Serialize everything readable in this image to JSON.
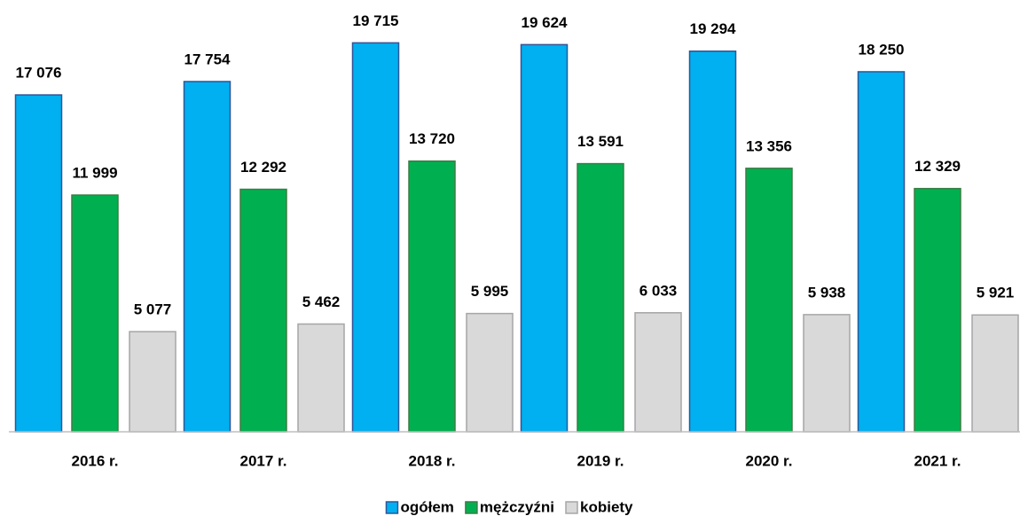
{
  "chart_data": {
    "type": "bar",
    "categories": [
      "2016 r.",
      "2017 r.",
      "2018 r.",
      "2019 r.",
      "2020 r.",
      "2021 r."
    ],
    "series": [
      {
        "name": "ogółem",
        "color": "#00b0f0",
        "values": [
          17076,
          17754,
          19715,
          19624,
          19294,
          18250
        ],
        "value_labels": [
          "17 076",
          "17 754",
          "19 715",
          "19 624",
          "19 294",
          "18 250"
        ]
      },
      {
        "name": "mężczyźni",
        "color": "#00b050",
        "values": [
          11999,
          12292,
          13720,
          13591,
          13356,
          12329
        ],
        "value_labels": [
          "11 999",
          "12 292",
          "13 720",
          "13 591",
          "13 356",
          "12 329"
        ]
      },
      {
        "name": "kobiety",
        "color": "#d9d9d9",
        "values": [
          5077,
          5462,
          5995,
          6033,
          5938,
          5921
        ],
        "value_labels": [
          "5 077",
          "5 462",
          "5 995",
          "6 033",
          "5 938",
          "5 921"
        ]
      }
    ],
    "ylim": [
      0,
      20000
    ],
    "grid": false,
    "legend": "bottom"
  }
}
